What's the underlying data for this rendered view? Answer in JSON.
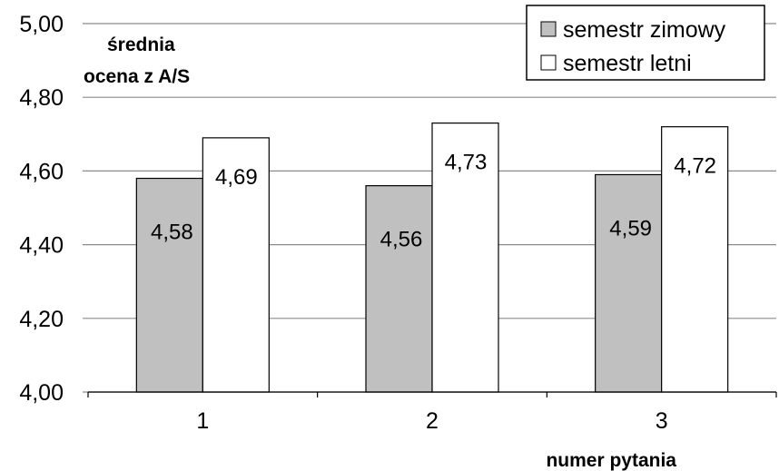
{
  "chart_data": {
    "type": "bar",
    "ylabel": [
      "średnia",
      "ocena z A/S"
    ],
    "xlabel": "numer pytania",
    "categories": [
      "1",
      "2",
      "3"
    ],
    "ylim": [
      4.0,
      5.0
    ],
    "yticks": [
      "4,00",
      "4,20",
      "4,40",
      "4,60",
      "4,80",
      "5,00"
    ],
    "grid": true,
    "legend_position": "top-right",
    "series": [
      {
        "name": "semestr zimowy",
        "color": "#c0c0c0",
        "values": [
          4.58,
          4.56,
          4.59
        ],
        "labels": [
          "4,58",
          "4,56",
          "4,59"
        ]
      },
      {
        "name": "semestr letni",
        "color": "#ffffff",
        "values": [
          4.69,
          4.73,
          4.72
        ],
        "labels": [
          "4,69",
          "4,73",
          "4,72"
        ]
      }
    ]
  }
}
